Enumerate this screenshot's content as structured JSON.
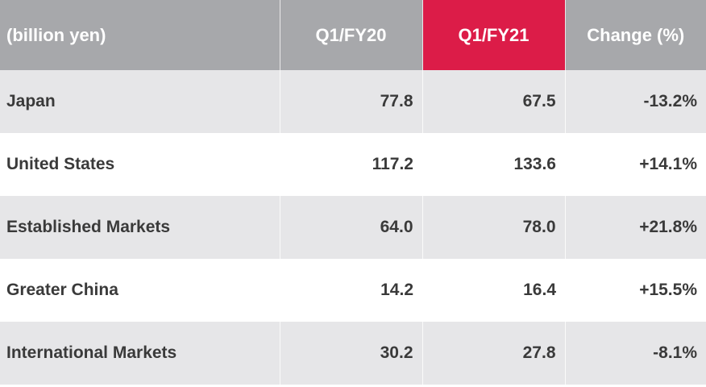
{
  "chart_data": {
    "type": "table",
    "columns": [
      "(billion yen)",
      "Q1/FY20",
      "Q1/FY21",
      "Change (%)"
    ],
    "highlight_column": "Q1/FY21",
    "rows": [
      [
        "Japan",
        "77.8",
        "67.5",
        "-13.2%"
      ],
      [
        "United States",
        "117.2",
        "133.6",
        "+14.1%"
      ],
      [
        "Established Markets",
        "64.0",
        "78.0",
        "+21.8%"
      ],
      [
        "Greater China",
        "14.2",
        "16.4",
        "+15.5%"
      ],
      [
        "International Markets",
        "30.2",
        "27.8",
        "-8.1%"
      ]
    ]
  },
  "colors": {
    "header": "#a7a8ab",
    "highlight": "#dc1c48",
    "row_alt": "#e6e6e8",
    "text": "#3a3a3a"
  }
}
